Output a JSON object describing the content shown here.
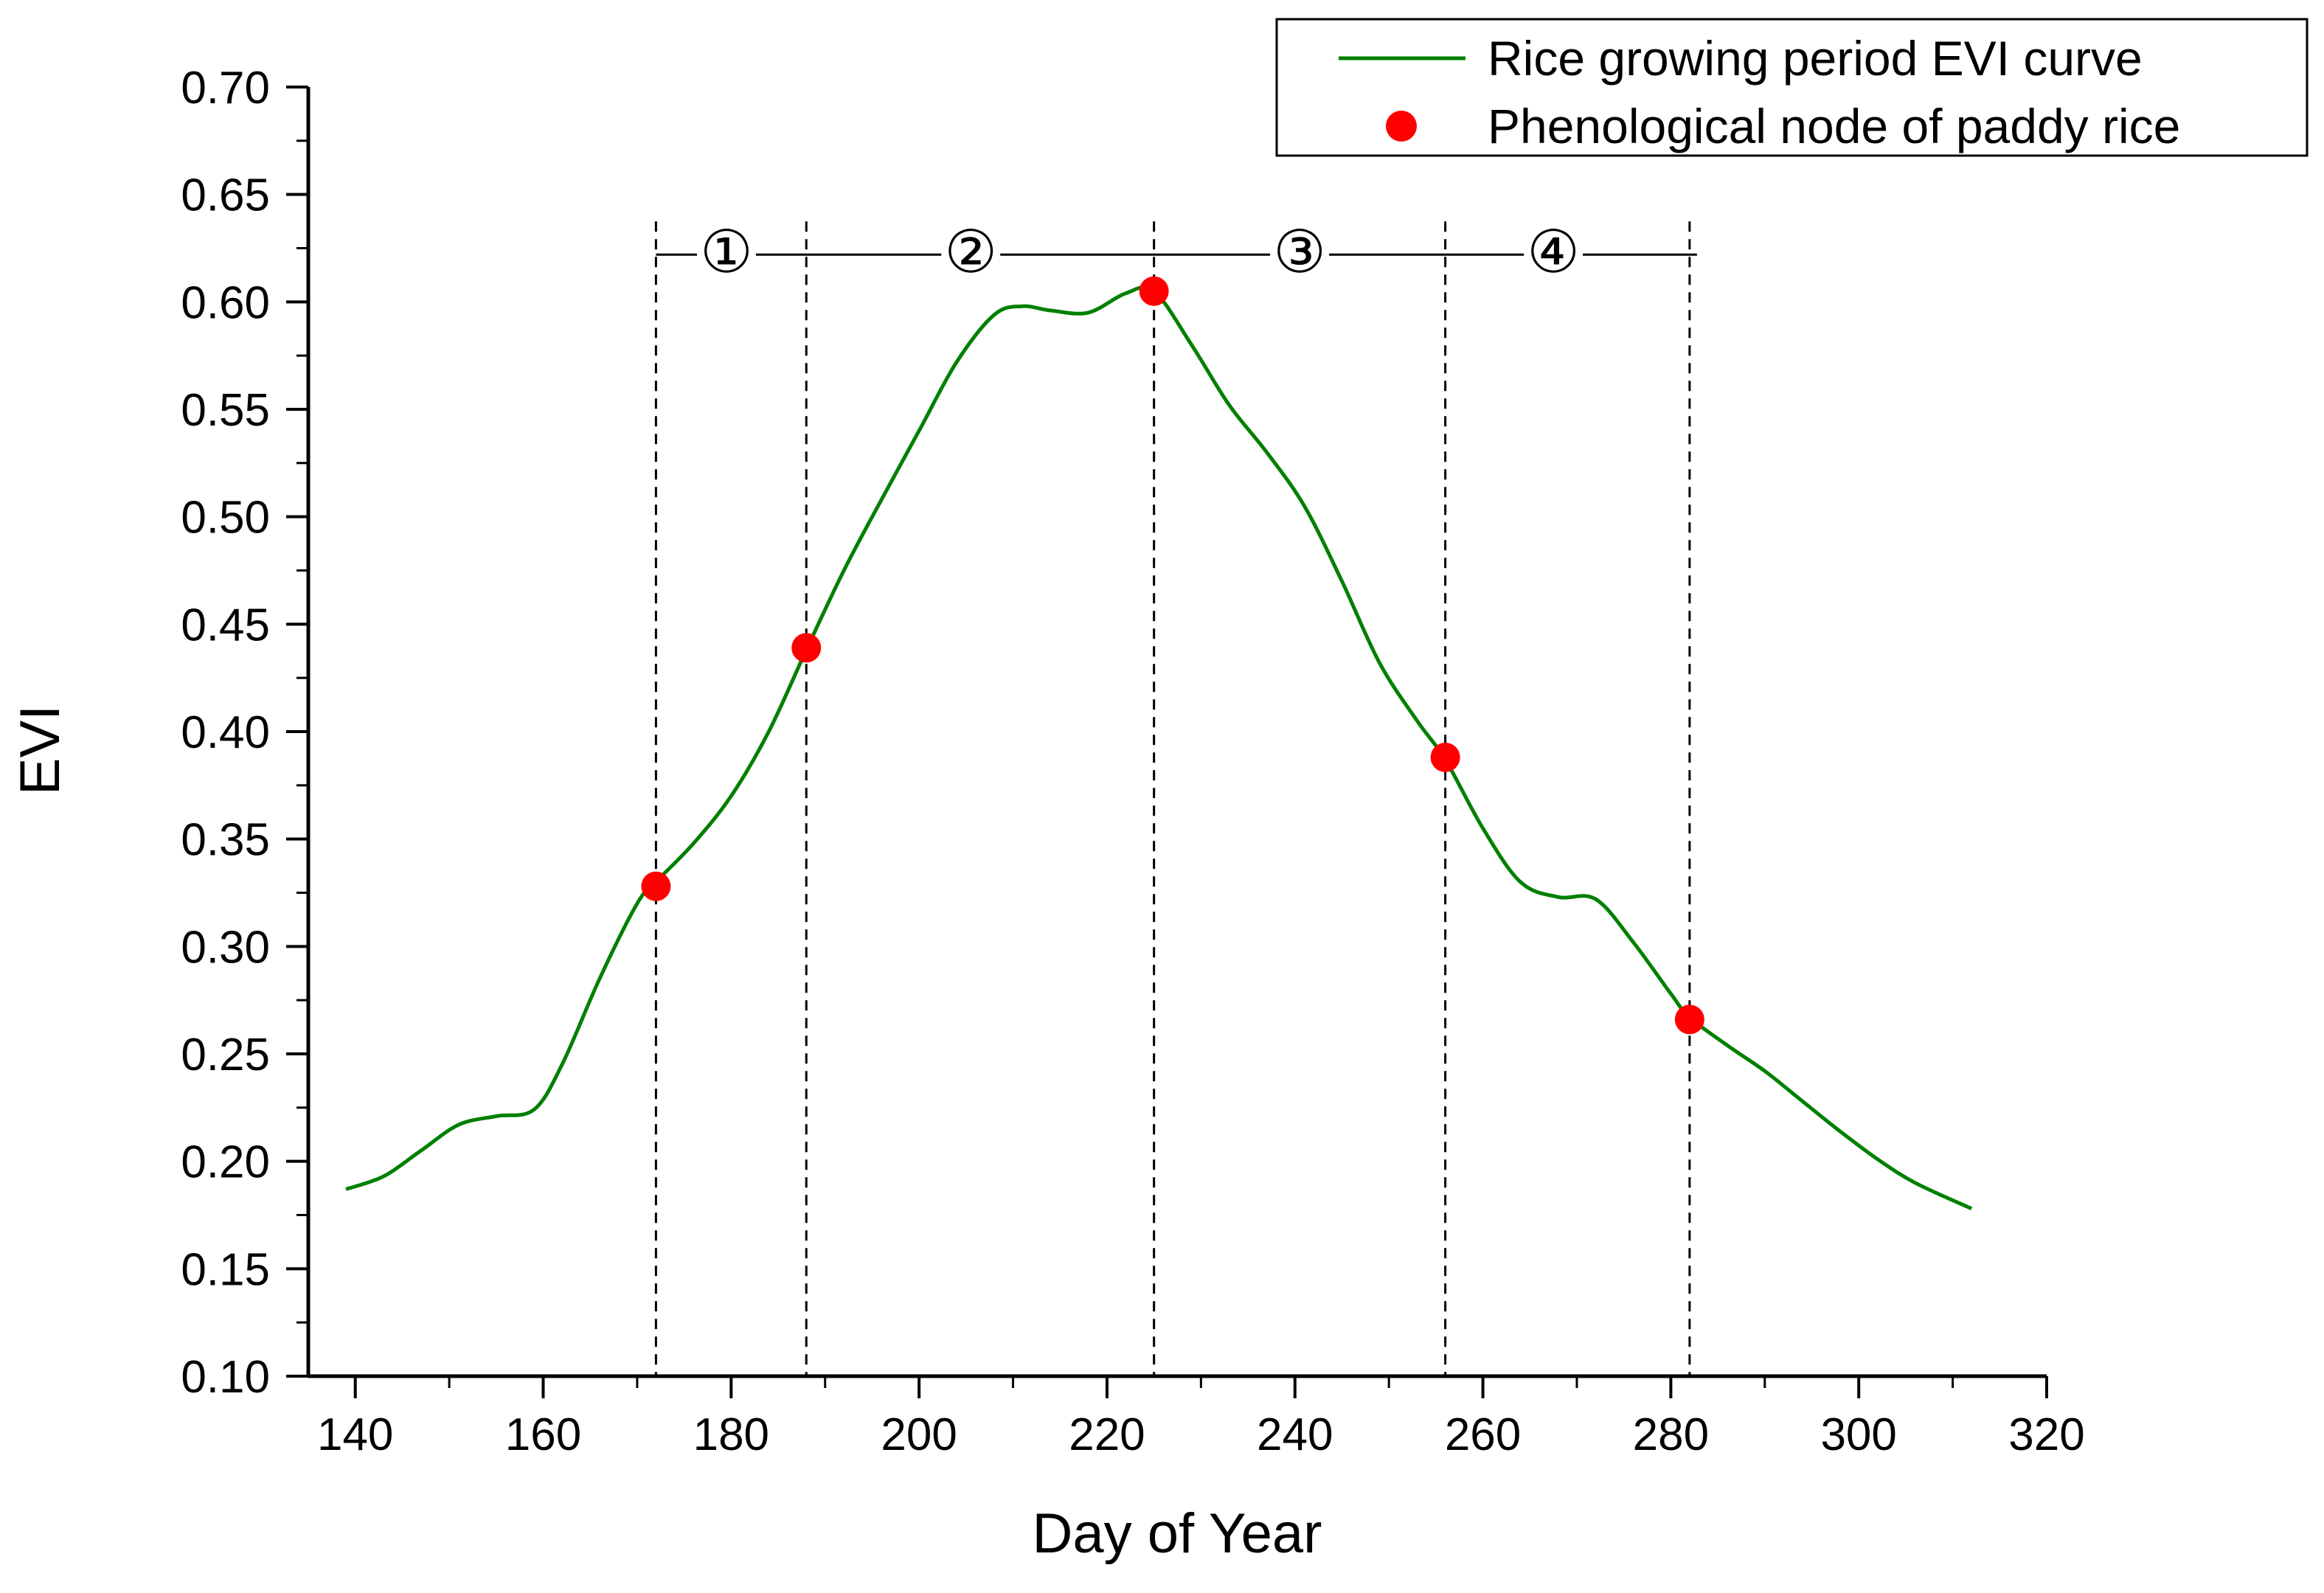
{
  "chart_data": {
    "type": "line",
    "xlabel": "Day of Year",
    "ylabel": "EVI",
    "xlim": [
      135,
      320
    ],
    "ylim": [
      0.1,
      0.7
    ],
    "xticks": [
      140,
      160,
      180,
      200,
      220,
      240,
      260,
      280,
      300,
      320
    ],
    "xtick_labels": [
      "140",
      "160",
      "180",
      "200",
      "220",
      "240",
      "260",
      "280",
      "300",
      "320"
    ],
    "yticks": [
      0.1,
      0.15,
      0.2,
      0.25,
      0.3,
      0.35,
      0.4,
      0.45,
      0.5,
      0.55,
      0.6,
      0.65,
      0.7
    ],
    "ytick_labels": [
      "0.10",
      "0.15",
      "0.20",
      "0.25",
      "0.30",
      "0.35",
      "0.40",
      "0.45",
      "0.50",
      "0.55",
      "0.60",
      "0.65",
      "0.70"
    ],
    "grid": false,
    "legend_position": "top-right",
    "series": [
      {
        "name": "Rice growing period EVI curve",
        "color": "#008000",
        "kind": "line",
        "x": [
          139,
          143,
          147,
          151,
          155,
          159,
          162,
          166,
          170,
          172,
          176,
          180,
          184,
          188,
          192,
          196,
          200,
          204,
          208,
          211,
          214,
          218,
          222,
          225,
          229,
          233,
          237,
          241,
          245,
          249,
          253,
          256,
          260,
          264,
          268,
          272,
          276,
          280,
          282,
          286,
          290,
          294,
          298,
          302,
          306,
          312
        ],
        "y": [
          0.187,
          0.193,
          0.205,
          0.217,
          0.221,
          0.224,
          0.245,
          0.285,
          0.32,
          0.33,
          0.348,
          0.37,
          0.4,
          0.438,
          0.475,
          0.508,
          0.54,
          0.572,
          0.594,
          0.598,
          0.596,
          0.595,
          0.604,
          0.605,
          0.58,
          0.552,
          0.53,
          0.505,
          0.47,
          0.432,
          0.405,
          0.387,
          0.355,
          0.33,
          0.323,
          0.322,
          0.302,
          0.278,
          0.267,
          0.254,
          0.242,
          0.228,
          0.214,
          0.201,
          0.19,
          0.178
        ]
      },
      {
        "name": "Phenological node of paddy rice",
        "color": "#ff0000",
        "kind": "scatter",
        "x": [
          172,
          188,
          225,
          256,
          282
        ],
        "y": [
          0.328,
          0.439,
          0.605,
          0.388,
          0.266
        ]
      }
    ],
    "vlines": [
      172,
      188,
      225,
      256,
      282
    ],
    "stage_line_y": 0.622,
    "stages": [
      {
        "label": "①",
        "x": 179.5
      },
      {
        "label": "②",
        "x": 205.5
      },
      {
        "label": "③",
        "x": 240.5
      },
      {
        "label": "④",
        "x": 267.5
      }
    ]
  }
}
